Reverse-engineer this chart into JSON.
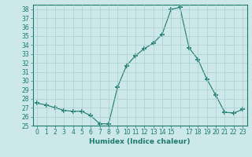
{
  "x": [
    0,
    1,
    2,
    3,
    4,
    5,
    6,
    7,
    8,
    9,
    10,
    11,
    12,
    13,
    14,
    15,
    16,
    17,
    18,
    19,
    20,
    21,
    22,
    23
  ],
  "y": [
    27.5,
    27.3,
    27.0,
    26.7,
    26.6,
    26.6,
    26.1,
    25.2,
    25.2,
    29.3,
    31.7,
    32.8,
    33.6,
    34.2,
    35.2,
    38.0,
    38.2,
    33.7,
    32.4,
    30.2,
    28.4,
    26.5,
    26.4,
    26.8
  ],
  "line_color": "#1a7a6e",
  "marker": "+",
  "marker_size": 4,
  "bg_color": "#cce8e8",
  "grid_color": "#aacece",
  "xlabel": "Humidex (Indice chaleur)",
  "ylim": [
    25,
    38.5
  ],
  "xlim": [
    -0.5,
    23.5
  ],
  "yticks": [
    25,
    26,
    27,
    28,
    29,
    30,
    31,
    32,
    33,
    34,
    35,
    36,
    37,
    38
  ],
  "xticks": [
    0,
    1,
    2,
    3,
    4,
    5,
    6,
    7,
    8,
    9,
    10,
    11,
    12,
    13,
    14,
    15,
    16,
    17,
    18,
    19,
    20,
    21,
    22,
    23
  ],
  "xtick_labels": [
    "0",
    "1",
    "2",
    "3",
    "4",
    "5",
    "6",
    "7",
    "8",
    "9",
    "10",
    "11",
    "12",
    "13",
    "14",
    "15",
    "",
    "17",
    "18",
    "19",
    "20",
    "21",
    "22",
    "23"
  ],
  "tick_color": "#1a7a6e",
  "label_fontsize": 6.5,
  "tick_fontsize": 5.5,
  "linewidth": 0.8,
  "marker_linewidth": 1.2
}
